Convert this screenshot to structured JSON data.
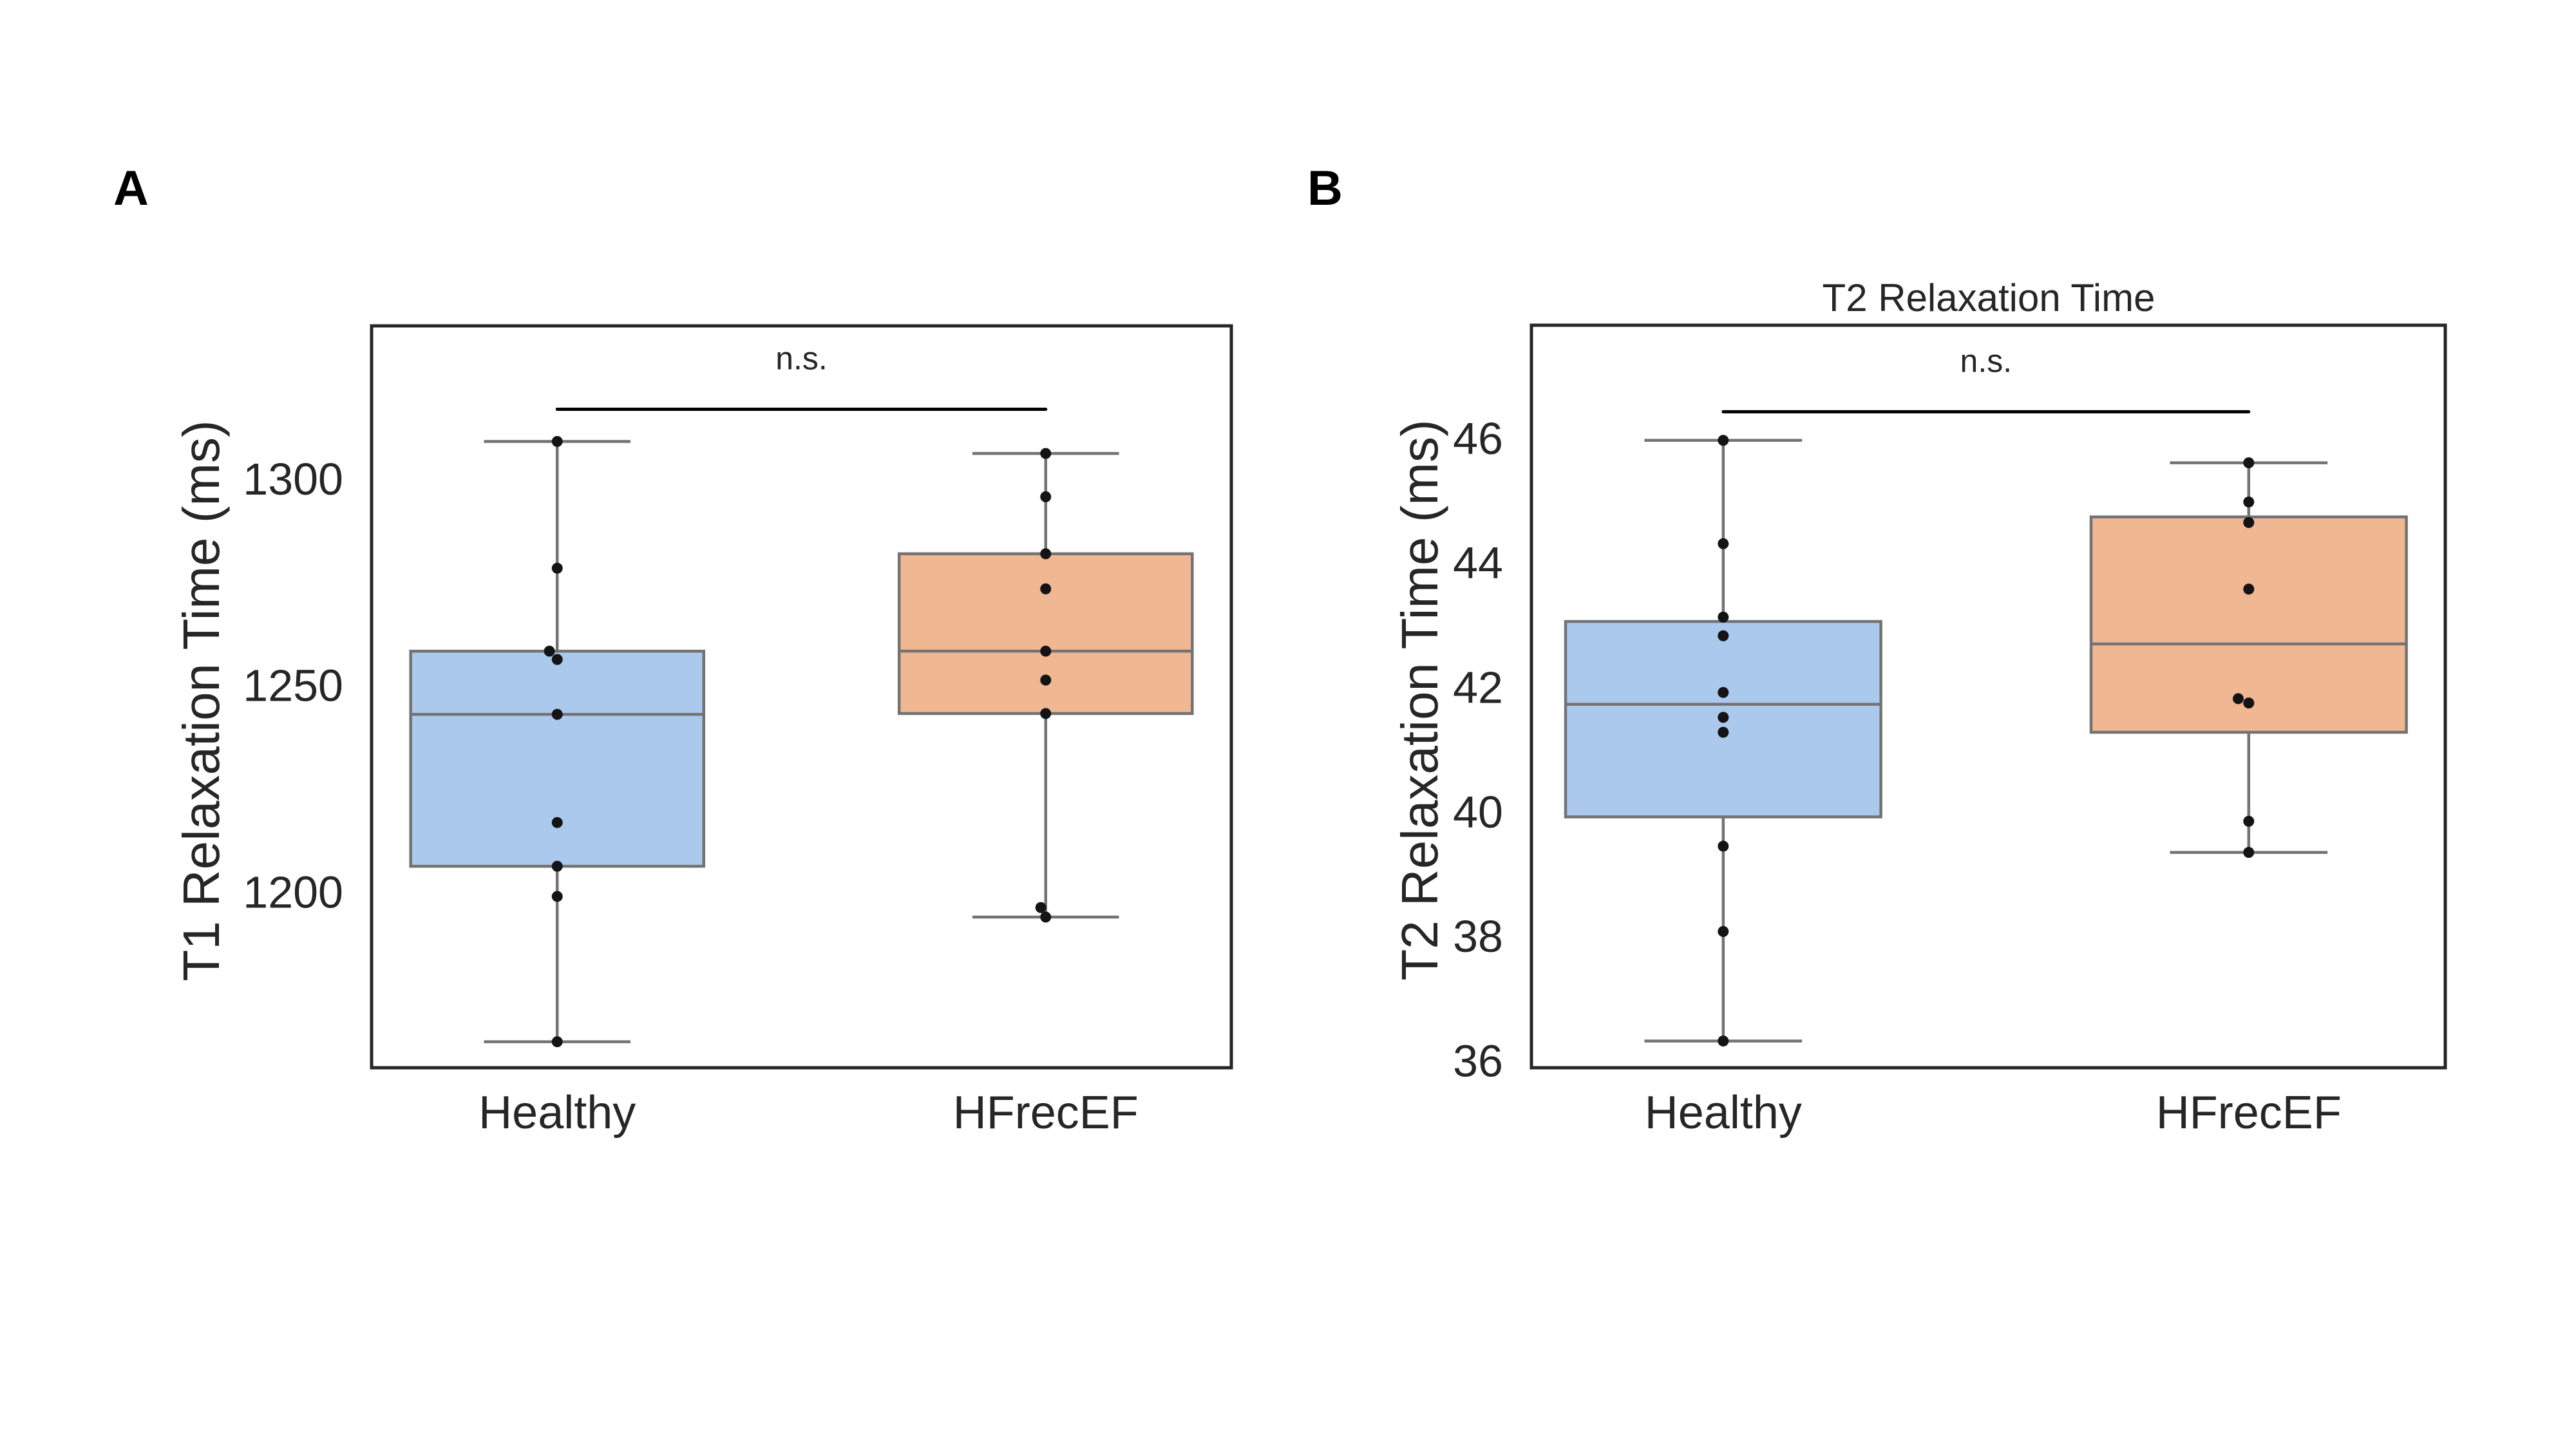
{
  "figure": {
    "panels": [
      {
        "letter": "A",
        "title": "",
        "significance_label": "n.s."
      },
      {
        "letter": "B",
        "title": "T2 Relaxation Time",
        "significance_label": "n.s."
      }
    ]
  },
  "chart_data": [
    {
      "type": "box",
      "panel": "A",
      "title": "",
      "xlabel": "",
      "ylabel": "T1 Relaxation Time (ms)",
      "categories": [
        "Healthy",
        "HFrecEF"
      ],
      "xlim": [
        -0.38,
        1.38
      ],
      "ylim": [
        1157.3,
        1337.0
      ],
      "yticks": [
        1200,
        1250,
        1300
      ],
      "ytick_labels": [
        "1200",
        "1250",
        "1300"
      ],
      "grid": false,
      "colors": {
        "Healthy": "#abc9ec",
        "HFrecEF": "#f0b793",
        "edge": "#737373",
        "points": "#141414"
      },
      "boxes": [
        {
          "category": "Healthy",
          "min": 1163.6,
          "q1": 1206.1,
          "median": 1242.9,
          "q3": 1258.2,
          "max": 1309.0
        },
        {
          "category": "HFrecEF",
          "min": 1193.8,
          "q1": 1243.1,
          "median": 1258.2,
          "q3": 1281.8,
          "max": 1306.1
        }
      ],
      "points": [
        {
          "category": "Healthy",
          "values": [
            1309.0,
            1278.3,
            1258.2,
            1256.2,
            1242.9,
            1216.7,
            1206.1,
            1198.8,
            1163.6
          ],
          "jitter": [
            0,
            0,
            -0.016,
            0,
            0,
            0,
            0,
            0,
            0
          ]
        },
        {
          "category": "HFrecEF",
          "values": [
            1306.1,
            1295.6,
            1281.8,
            1273.3,
            1258.2,
            1251.2,
            1243.1,
            1196.1,
            1193.8
          ],
          "jitter": [
            0,
            0,
            0,
            0,
            0,
            0,
            0,
            -0.01,
            0
          ]
        }
      ],
      "annotation": {
        "text": "n.s.",
        "from": "Healthy",
        "to": "HFrecEF",
        "bar_y": 1316.8
      }
    },
    {
      "type": "box",
      "panel": "B",
      "title": "T2 Relaxation Time",
      "xlabel": "",
      "ylabel": "T2 Relaxation Time (ms)",
      "categories": [
        "Healthy",
        "HFrecEF"
      ],
      "xlim": [
        -0.365,
        1.374
      ],
      "ylim": [
        35.88,
        47.81
      ],
      "yticks": [
        36,
        38,
        40,
        42,
        44,
        46
      ],
      "ytick_labels": [
        "36",
        "38",
        "40",
        "42",
        "44",
        "46"
      ],
      "grid": false,
      "colors": {
        "Healthy": "#abc9ec",
        "HFrecEF": "#f0b793",
        "edge": "#737373",
        "points": "#141414"
      },
      "boxes": [
        {
          "category": "Healthy",
          "min": 36.31,
          "q1": 39.91,
          "median": 41.72,
          "q3": 43.05,
          "max": 45.96
        },
        {
          "category": "HFrecEF",
          "min": 39.34,
          "q1": 41.27,
          "median": 42.69,
          "q3": 44.73,
          "max": 45.6
        }
      ],
      "points": [
        {
          "category": "Healthy",
          "values": [
            45.96,
            44.3,
            43.12,
            42.82,
            41.91,
            41.51,
            41.27,
            39.44,
            38.07,
            36.31
          ],
          "jitter": [
            0,
            0,
            0,
            0,
            0,
            0,
            0,
            0,
            0,
            0
          ]
        },
        {
          "category": "HFrecEF",
          "values": [
            45.6,
            44.97,
            44.64,
            43.57,
            41.81,
            41.74,
            39.84,
            39.34
          ],
          "jitter": [
            0,
            0,
            0,
            0,
            -0.02,
            0,
            0,
            0
          ]
        }
      ],
      "annotation": {
        "text": "n.s.",
        "from": "Healthy",
        "to": "HFrecEF",
        "bar_y": 46.42
      }
    }
  ]
}
